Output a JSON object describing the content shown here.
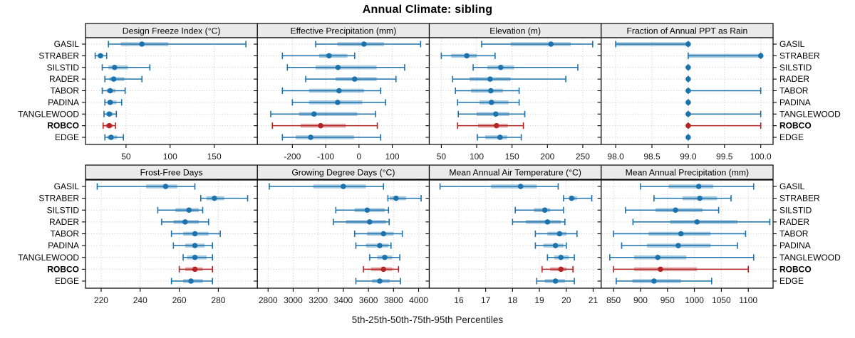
{
  "title": "Annual Climate: sibling",
  "caption": "5th-25th-50th-75th-95th Percentiles",
  "colors": {
    "series": "#1b72ad",
    "highlight": "#b52425",
    "strip_bg": "#eaeaea",
    "panel_border": "#000000",
    "grid": "#c8c8c8",
    "text": "#000000"
  },
  "chart_data": {
    "type": "interval-dotplot",
    "percentiles": [
      "5th",
      "25th",
      "50th",
      "75th",
      "95th"
    ],
    "sites": [
      "GASIL",
      "STRABER",
      "SILSTID",
      "RADER",
      "TABOR",
      "PADINA",
      "TANGLEWOOD",
      "ROBCO",
      "EDGE"
    ],
    "highlighted_site": "ROBCO",
    "layout": {
      "rows": 2,
      "cols": 4,
      "grid": "dotted",
      "labels": "left-and-right"
    },
    "panels": [
      {
        "title": "Design Freeze Index (°C)",
        "xlim": [
          4,
          199
        ],
        "ticks": [
          50,
          100,
          150
        ],
        "tick_labels": [
          "50",
          "100",
          "150"
        ],
        "values": [
          [
            30,
            44,
            68,
            98,
            186
          ],
          [
            15,
            18,
            21,
            24,
            28
          ],
          [
            23,
            30,
            37,
            52,
            77
          ],
          [
            26,
            31,
            36,
            48,
            68
          ],
          [
            23,
            28,
            32,
            38,
            49
          ],
          [
            26,
            29,
            32,
            39,
            45
          ],
          [
            25,
            28,
            31,
            35,
            39
          ],
          [
            24,
            27,
            31,
            35,
            38
          ],
          [
            26,
            29,
            33,
            40,
            47
          ]
        ]
      },
      {
        "title": "Effective Precipitation (mm)",
        "xlim": [
          -305,
          211
        ],
        "ticks": [
          -200,
          -100,
          0,
          100
        ],
        "tick_labels": [
          "-200",
          "-100",
          "0",
          "100"
        ],
        "values": [
          [
            -130,
            -65,
            15,
            75,
            185
          ],
          [
            -230,
            -120,
            -90,
            -35,
            -13
          ],
          [
            -215,
            -130,
            -63,
            53,
            137
          ],
          [
            -160,
            -70,
            -13,
            53,
            111
          ],
          [
            -230,
            -150,
            -60,
            15,
            65
          ],
          [
            -200,
            -150,
            -64,
            10,
            80
          ],
          [
            -265,
            -180,
            -135,
            -5,
            50
          ],
          [
            -260,
            -175,
            -115,
            -40,
            55
          ],
          [
            -230,
            -190,
            -145,
            -15,
            65
          ]
        ]
      },
      {
        "title": "Elevation (m)",
        "xlim": [
          33,
          276
        ],
        "ticks": [
          50,
          100,
          150,
          200,
          250
        ],
        "tick_labels": [
          "50",
          "100",
          "150",
          "200",
          "250"
        ],
        "values": [
          [
            107,
            148,
            205,
            233,
            264
          ],
          [
            50,
            64,
            86,
            100,
            126
          ],
          [
            95,
            115,
            134,
            153,
            243
          ],
          [
            66,
            90,
            119,
            148,
            226
          ],
          [
            70,
            92,
            120,
            137,
            160
          ],
          [
            73,
            104,
            121,
            145,
            160
          ],
          [
            74,
            100,
            127,
            146,
            168
          ],
          [
            73,
            102,
            128,
            144,
            166
          ],
          [
            101,
            112,
            133,
            143,
            163
          ]
        ]
      },
      {
        "title": "Fraction of Annual PPT as Rain",
        "xlim": [
          97.8,
          100.17
        ],
        "ticks": [
          98,
          98.5,
          99,
          99.5,
          100
        ],
        "tick_labels": [
          "98.0",
          "98.5",
          "99.0",
          "99.5",
          "100.0"
        ],
        "values": [
          [
            98,
            98,
            99,
            99,
            99
          ],
          [
            99,
            99,
            100,
            100,
            100
          ],
          [
            99,
            99,
            99,
            99,
            99
          ],
          [
            99,
            99,
            99,
            99,
            99
          ],
          [
            99,
            99,
            99,
            99,
            100
          ],
          [
            99,
            99,
            99,
            99,
            99
          ],
          [
            99,
            99,
            99,
            99,
            100
          ],
          [
            99,
            99,
            99,
            99,
            100
          ],
          [
            99,
            99,
            99,
            99,
            99
          ]
        ]
      },
      {
        "title": "Frost-Free Days",
        "xlim": [
          212,
          300
        ],
        "ticks": [
          220,
          240,
          260,
          280
        ],
        "tick_labels": [
          "220",
          "240",
          "260",
          "280"
        ],
        "values": [
          [
            218,
            243,
            253,
            259,
            268
          ],
          [
            271,
            274,
            278,
            283,
            295
          ],
          [
            249,
            258,
            265,
            270,
            272
          ],
          [
            251,
            257,
            263,
            270,
            275
          ],
          [
            256,
            262,
            268,
            275,
            281
          ],
          [
            257,
            263,
            268,
            273,
            277
          ],
          [
            262,
            264,
            268,
            274,
            277
          ],
          [
            260,
            263,
            268,
            272,
            277
          ],
          [
            256,
            262,
            266,
            272,
            277
          ]
        ]
      },
      {
        "title": "Growing Degree Days (°C)",
        "xlim": [
          2715,
          4085
        ],
        "ticks": [
          2800,
          3000,
          3200,
          3400,
          3600,
          3800,
          4000
        ],
        "tick_labels": [
          "2800",
          "3000",
          "3200",
          "3400",
          "3600",
          "3800",
          "4000"
        ],
        "values": [
          [
            2810,
            3160,
            3400,
            3580,
            3720
          ],
          [
            3755,
            3770,
            3820,
            3900,
            4020
          ],
          [
            3340,
            3490,
            3590,
            3730,
            3760
          ],
          [
            3320,
            3420,
            3610,
            3740,
            3765
          ],
          [
            3490,
            3590,
            3720,
            3800,
            3870
          ],
          [
            3500,
            3580,
            3690,
            3760,
            3780
          ],
          [
            3610,
            3670,
            3730,
            3790,
            3850
          ],
          [
            3560,
            3620,
            3720,
            3790,
            3840
          ],
          [
            3500,
            3630,
            3690,
            3770,
            3855
          ]
        ]
      },
      {
        "title": "Mean Annual Air Temperature (°C)",
        "xlim": [
          14.9,
          21.3
        ],
        "ticks": [
          16,
          17,
          18,
          19,
          20,
          21
        ],
        "tick_labels": [
          "16",
          "17",
          "18",
          "19",
          "20",
          "21"
        ],
        "values": [
          [
            15.3,
            17.2,
            18.3,
            18.9,
            19.7
          ],
          [
            19.9,
            20.1,
            20.2,
            20.4,
            20.95
          ],
          [
            18.1,
            18.8,
            19.2,
            19.4,
            19.9
          ],
          [
            18.0,
            18.5,
            19.3,
            19.8,
            19.95
          ],
          [
            18.85,
            19.3,
            19.75,
            20.0,
            20.4
          ],
          [
            18.85,
            19.15,
            19.6,
            19.9,
            20.0
          ],
          [
            19.3,
            19.55,
            19.8,
            20.1,
            20.3
          ],
          [
            19.1,
            19.4,
            19.8,
            20.0,
            20.25
          ],
          [
            18.9,
            19.2,
            19.6,
            19.95,
            20.3
          ]
        ]
      },
      {
        "title": "Mean Annual Precipitation (mm)",
        "xlim": [
          827,
          1146
        ],
        "ticks": [
          850,
          900,
          950,
          1000,
          1050,
          1100
        ],
        "tick_labels": [
          "850",
          "900",
          "950",
          "1000",
          "1050",
          "1100"
        ],
        "values": [
          [
            900,
            952,
            1008,
            1035,
            1110
          ],
          [
            925,
            978,
            1010,
            1042,
            1068
          ],
          [
            872,
            928,
            965,
            1015,
            1045
          ],
          [
            886,
            955,
            1005,
            1080,
            1140
          ],
          [
            850,
            915,
            975,
            1030,
            1095
          ],
          [
            865,
            912,
            970,
            1030,
            1080
          ],
          [
            843,
            888,
            932,
            985,
            1110
          ],
          [
            850,
            888,
            937,
            1005,
            1100
          ],
          [
            855,
            885,
            925,
            975,
            1032
          ]
        ]
      }
    ]
  }
}
